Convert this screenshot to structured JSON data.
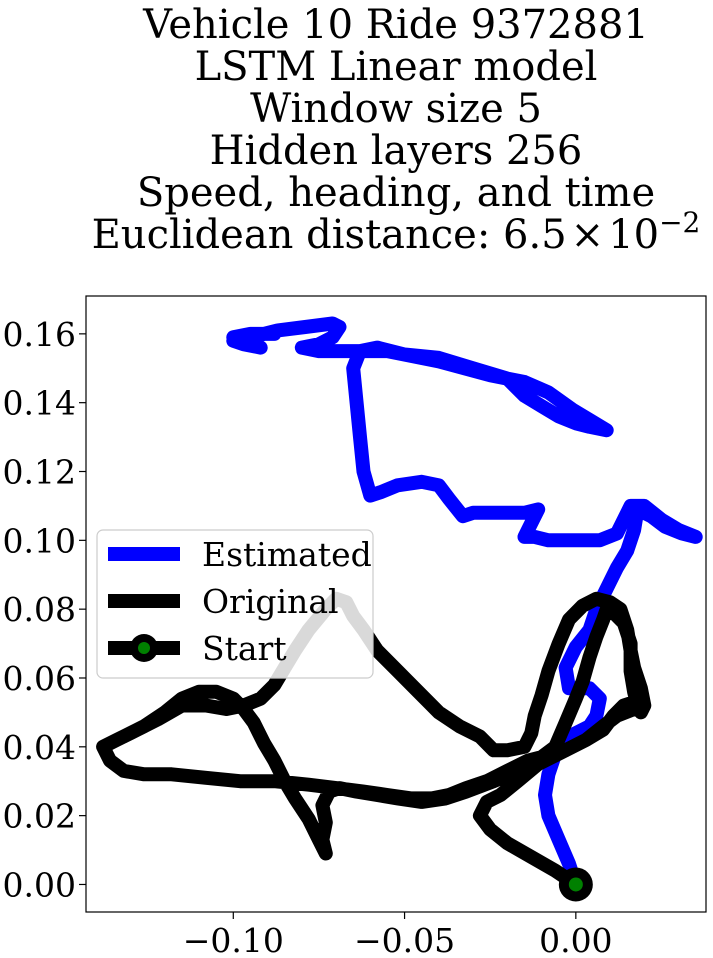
{
  "chart_data": {
    "type": "line",
    "title_lines": [
      "Vehicle 10 Ride 9372881",
      "LSTM Linear model",
      "Window size 5",
      "Hidden layers 256",
      "Speed, heading, and time",
      "Euclidean distance: "
    ],
    "title_math": {
      "mantissa": "6.5",
      "times": "×",
      "base": "10",
      "exponent": "−2"
    },
    "xlim": [
      -0.143,
      0.038
    ],
    "ylim": [
      -0.008,
      0.171
    ],
    "xticks": [
      -0.1,
      -0.05,
      0.0
    ],
    "xtick_labels": [
      "−0.10",
      "−0.05",
      "0.00"
    ],
    "yticks": [
      0.0,
      0.02,
      0.04,
      0.06,
      0.08,
      0.1,
      0.12,
      0.14,
      0.16
    ],
    "ytick_labels": [
      "0.00",
      "0.02",
      "0.04",
      "0.06",
      "0.08",
      "0.10",
      "0.12",
      "0.14",
      "0.16"
    ],
    "grid": false,
    "legend_position": "center-left",
    "series": [
      {
        "name": "Estimated",
        "color": "#0000ff",
        "points": [
          [
            0.0,
            0.0
          ],
          [
            -0.002,
            0.006
          ],
          [
            -0.005,
            0.013
          ],
          [
            -0.008,
            0.02
          ],
          [
            -0.009,
            0.026
          ],
          [
            -0.008,
            0.032
          ],
          [
            -0.006,
            0.038
          ],
          [
            -0.004,
            0.042
          ],
          [
            0.0,
            0.044
          ],
          [
            0.004,
            0.046
          ],
          [
            0.006,
            0.049
          ],
          [
            0.007,
            0.054
          ],
          [
            0.004,
            0.057
          ],
          [
            -0.002,
            0.057
          ],
          [
            -0.003,
            0.063
          ],
          [
            0.0,
            0.069
          ],
          [
            0.004,
            0.074
          ],
          [
            0.006,
            0.08
          ],
          [
            0.009,
            0.086
          ],
          [
            0.012,
            0.092
          ],
          [
            0.015,
            0.097
          ],
          [
            0.017,
            0.103
          ],
          [
            0.018,
            0.109
          ],
          [
            0.022,
            0.107
          ],
          [
            0.026,
            0.104
          ],
          [
            0.031,
            0.102
          ],
          [
            0.035,
            0.101
          ],
          [
            0.03,
            0.103
          ],
          [
            0.025,
            0.106
          ],
          [
            0.02,
            0.11
          ],
          [
            0.016,
            0.11
          ],
          [
            0.012,
            0.102
          ],
          [
            0.007,
            0.1
          ],
          [
            0.0,
            0.1
          ],
          [
            -0.008,
            0.1
          ],
          [
            -0.012,
            0.101
          ],
          [
            -0.015,
            0.101
          ],
          [
            -0.013,
            0.105
          ],
          [
            -0.011,
            0.109
          ],
          [
            -0.015,
            0.108
          ],
          [
            -0.022,
            0.108
          ],
          [
            -0.03,
            0.108
          ],
          [
            -0.033,
            0.107
          ],
          [
            -0.037,
            0.112
          ],
          [
            -0.04,
            0.116
          ],
          [
            -0.045,
            0.117
          ],
          [
            -0.052,
            0.116
          ],
          [
            -0.057,
            0.114
          ],
          [
            -0.06,
            0.113
          ],
          [
            -0.062,
            0.12
          ],
          [
            -0.063,
            0.13
          ],
          [
            -0.064,
            0.14
          ],
          [
            -0.065,
            0.15
          ],
          [
            -0.063,
            0.155
          ],
          [
            -0.058,
            0.156
          ],
          [
            -0.05,
            0.154
          ],
          [
            -0.04,
            0.153
          ],
          [
            -0.03,
            0.15
          ],
          [
            -0.02,
            0.147
          ],
          [
            -0.018,
            0.145
          ],
          [
            -0.015,
            0.142
          ],
          [
            -0.01,
            0.139
          ],
          [
            -0.005,
            0.136
          ],
          [
            0.0,
            0.134
          ],
          [
            0.004,
            0.133
          ],
          [
            0.009,
            0.132
          ],
          [
            0.004,
            0.135
          ],
          [
            -0.001,
            0.138
          ],
          [
            -0.008,
            0.143
          ],
          [
            -0.015,
            0.146
          ],
          [
            -0.025,
            0.148
          ],
          [
            -0.04,
            0.152
          ],
          [
            -0.055,
            0.155
          ],
          [
            -0.065,
            0.155
          ],
          [
            -0.075,
            0.155
          ],
          [
            -0.08,
            0.156
          ],
          [
            -0.075,
            0.157
          ],
          [
            -0.071,
            0.159
          ],
          [
            -0.069,
            0.162
          ],
          [
            -0.071,
            0.163
          ],
          [
            -0.079,
            0.162
          ],
          [
            -0.087,
            0.161
          ],
          [
            -0.095,
            0.159
          ],
          [
            -0.1,
            0.158
          ],
          [
            -0.097,
            0.157
          ],
          [
            -0.092,
            0.156
          ],
          [
            -0.096,
            0.157
          ],
          [
            -0.1,
            0.159
          ],
          [
            -0.095,
            0.16
          ],
          [
            -0.088,
            0.16
          ]
        ]
      },
      {
        "name": "Original",
        "color": "#000000",
        "points": [
          [
            0.0,
            0.0
          ],
          [
            -0.006,
            0.004
          ],
          [
            -0.013,
            0.008
          ],
          [
            -0.02,
            0.012
          ],
          [
            -0.025,
            0.016
          ],
          [
            -0.028,
            0.02
          ],
          [
            -0.026,
            0.024
          ],
          [
            -0.022,
            0.026
          ],
          [
            -0.017,
            0.03
          ],
          [
            -0.011,
            0.035
          ],
          [
            -0.005,
            0.038
          ],
          [
            0.003,
            0.042
          ],
          [
            0.008,
            0.045
          ],
          [
            0.011,
            0.049
          ],
          [
            0.014,
            0.052
          ],
          [
            0.017,
            0.053
          ],
          [
            0.02,
            0.052
          ],
          [
            0.019,
            0.057
          ],
          [
            0.017,
            0.063
          ],
          [
            0.016,
            0.068
          ],
          [
            0.015,
            0.074
          ],
          [
            0.013,
            0.08
          ],
          [
            0.01,
            0.082
          ],
          [
            0.006,
            0.083
          ],
          [
            0.002,
            0.081
          ],
          [
            -0.002,
            0.077
          ],
          [
            -0.005,
            0.07
          ],
          [
            -0.008,
            0.062
          ],
          [
            -0.01,
            0.055
          ],
          [
            -0.012,
            0.049
          ],
          [
            -0.013,
            0.044
          ],
          [
            -0.015,
            0.04
          ],
          [
            -0.02,
            0.039
          ],
          [
            -0.024,
            0.039
          ],
          [
            -0.028,
            0.043
          ],
          [
            -0.034,
            0.046
          ],
          [
            -0.04,
            0.05
          ],
          [
            -0.046,
            0.056
          ],
          [
            -0.052,
            0.062
          ],
          [
            -0.058,
            0.068
          ],
          [
            -0.062,
            0.074
          ],
          [
            -0.065,
            0.078
          ],
          [
            -0.067,
            0.082
          ],
          [
            -0.07,
            0.083
          ],
          [
            -0.073,
            0.08
          ],
          [
            -0.078,
            0.074
          ],
          [
            -0.082,
            0.068
          ],
          [
            -0.085,
            0.063
          ],
          [
            -0.088,
            0.058
          ],
          [
            -0.092,
            0.054
          ],
          [
            -0.097,
            0.052
          ],
          [
            -0.102,
            0.051
          ],
          [
            -0.108,
            0.052
          ],
          [
            -0.115,
            0.052
          ],
          [
            -0.122,
            0.048
          ],
          [
            -0.13,
            0.044
          ],
          [
            -0.134,
            0.042
          ],
          [
            -0.138,
            0.04
          ],
          [
            -0.136,
            0.036
          ],
          [
            -0.132,
            0.033
          ],
          [
            -0.126,
            0.032
          ],
          [
            -0.118,
            0.032
          ],
          [
            -0.108,
            0.031
          ],
          [
            -0.098,
            0.03
          ],
          [
            -0.088,
            0.03
          ],
          [
            -0.078,
            0.029
          ],
          [
            -0.07,
            0.028
          ],
          [
            -0.062,
            0.027
          ],
          [
            -0.055,
            0.026
          ],
          [
            -0.048,
            0.025
          ],
          [
            -0.042,
            0.025
          ],
          [
            -0.037,
            0.026
          ],
          [
            -0.032,
            0.028
          ],
          [
            -0.026,
            0.03
          ],
          [
            -0.02,
            0.033
          ],
          [
            -0.014,
            0.036
          ],
          [
            -0.01,
            0.037
          ],
          [
            -0.006,
            0.04
          ],
          [
            -0.003,
            0.047
          ],
          [
            0.0,
            0.054
          ],
          [
            0.002,
            0.059
          ],
          [
            0.004,
            0.066
          ],
          [
            0.006,
            0.072
          ],
          [
            0.008,
            0.077
          ],
          [
            0.009,
            0.08
          ],
          [
            0.011,
            0.079
          ],
          [
            0.014,
            0.076
          ],
          [
            0.016,
            0.07
          ],
          [
            0.016,
            0.062
          ],
          [
            0.017,
            0.056
          ],
          [
            0.018,
            0.052
          ],
          [
            0.019,
            0.05
          ],
          [
            0.02,
            0.052
          ],
          [
            0.017,
            0.051
          ],
          [
            0.012,
            0.049
          ],
          [
            0.008,
            0.046
          ],
          [
            0.003,
            0.042
          ],
          [
            -0.003,
            0.039
          ],
          [
            -0.01,
            0.036
          ],
          [
            -0.017,
            0.033
          ],
          [
            -0.024,
            0.03
          ],
          [
            -0.032,
            0.027
          ],
          [
            -0.038,
            0.025
          ],
          [
            -0.045,
            0.024
          ],
          [
            -0.052,
            0.025
          ],
          [
            -0.058,
            0.026
          ],
          [
            -0.064,
            0.027
          ],
          [
            -0.069,
            0.028
          ],
          [
            -0.072,
            0.027
          ],
          [
            -0.074,
            0.023
          ],
          [
            -0.073,
            0.018
          ],
          [
            -0.074,
            0.013
          ],
          [
            -0.073,
            0.009
          ],
          [
            -0.075,
            0.013
          ],
          [
            -0.078,
            0.019
          ],
          [
            -0.082,
            0.025
          ],
          [
            -0.085,
            0.03
          ],
          [
            -0.088,
            0.036
          ],
          [
            -0.091,
            0.041
          ],
          [
            -0.094,
            0.047
          ],
          [
            -0.097,
            0.051
          ],
          [
            -0.1,
            0.054
          ],
          [
            -0.105,
            0.056
          ],
          [
            -0.11,
            0.056
          ],
          [
            -0.115,
            0.054
          ],
          [
            -0.12,
            0.05
          ],
          [
            -0.126,
            0.046
          ],
          [
            -0.132,
            0.043
          ]
        ]
      },
      {
        "name": "Start",
        "color": "#000000",
        "marker_fill": "#008000",
        "points": [
          [
            0.0,
            0.0
          ]
        ]
      }
    ]
  }
}
